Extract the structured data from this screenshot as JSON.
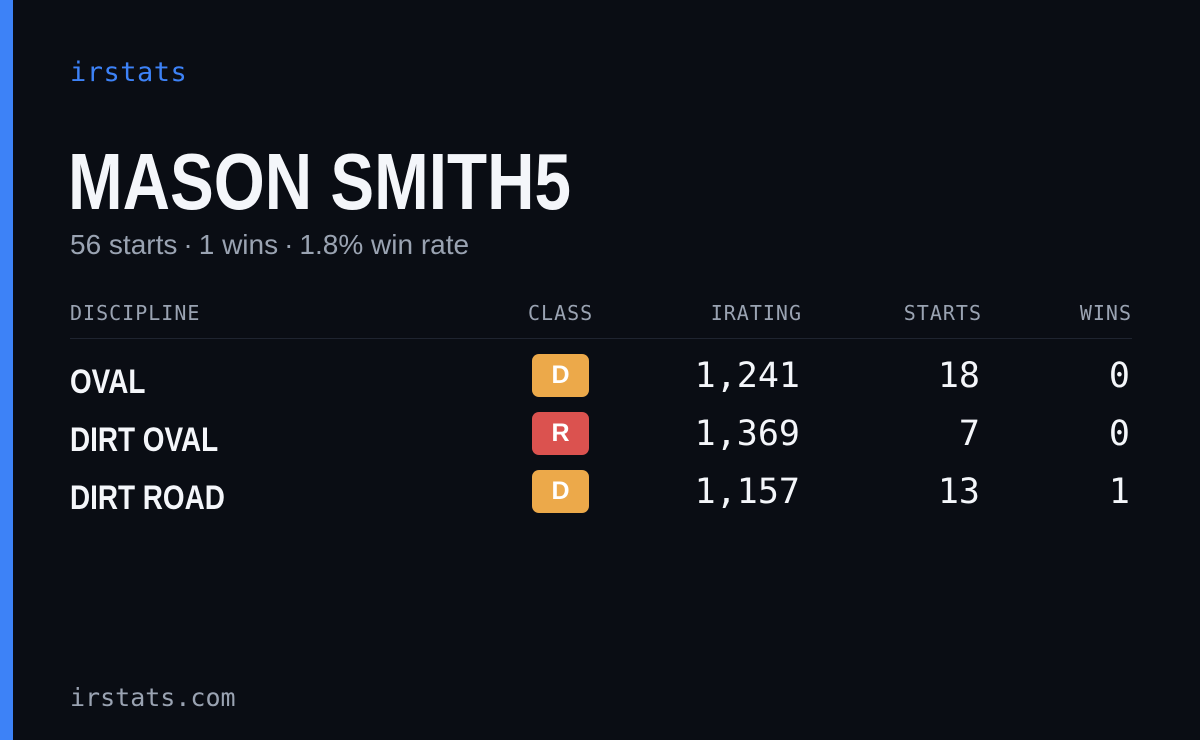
{
  "brand": "irstats",
  "accent_color": "#3d82f7",
  "driver": {
    "name": "MASON SMITH5",
    "starts_text": "56 starts",
    "wins_text": "1 wins",
    "win_rate_text": "1.8% win rate",
    "separator": "·"
  },
  "table": {
    "headers": {
      "discipline": "DISCIPLINE",
      "class": "CLASS",
      "irating": "IRATING",
      "starts": "STARTS",
      "wins": "WINS"
    },
    "rows": [
      {
        "discipline": "OVAL",
        "class": "D",
        "class_color": "#eca94a",
        "irating": "1,241",
        "starts": "18",
        "wins": "0"
      },
      {
        "discipline": "DIRT OVAL",
        "class": "R",
        "class_color": "#db524f",
        "irating": "1,369",
        "starts": "7",
        "wins": "0"
      },
      {
        "discipline": "DIRT ROAD",
        "class": "D",
        "class_color": "#eca94a",
        "irating": "1,157",
        "starts": "13",
        "wins": "1"
      }
    ]
  },
  "footer": "irstats.com"
}
